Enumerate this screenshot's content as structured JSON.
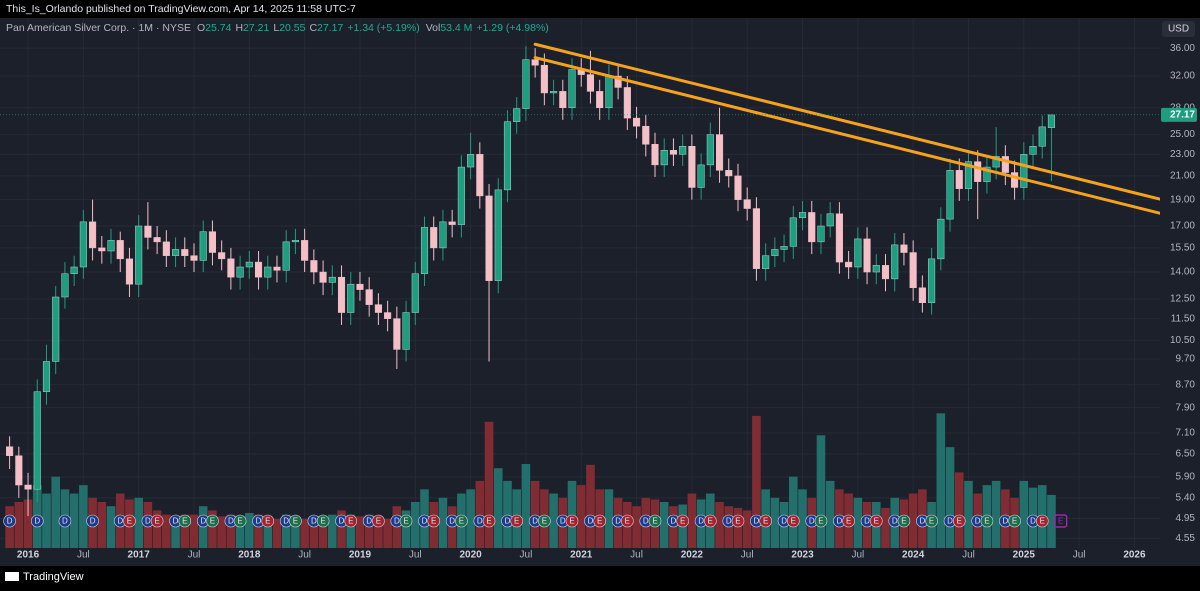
{
  "page": {
    "published": "This_Is_Orlando published on TradingView.com, Apr 14, 2025 11:58 UTC-7",
    "footer": "TradingView",
    "currency": "USD"
  },
  "chart_data": {
    "type": "candlestick",
    "title": "Pan American Silver Corp. · 1M · NYSE",
    "ohlc_letters": [
      "O",
      "H",
      "L",
      "C"
    ],
    "change_text": "+1.34 (+5.19%)",
    "volume_title": "Vol",
    "volume_text": "53.4 M",
    "volume_change_text": "+1.29 (+4.98%)",
    "log_scale": true,
    "grid": true,
    "up_color": "#1f9d80",
    "down_color": "#f4bfc6",
    "volume_up_color": "#236f6b",
    "volume_down_color": "#812c33",
    "x": [
      "2015-11",
      "2015-12",
      "2016-01",
      "2016-02",
      "2016-03",
      "2016-04",
      "2016-05",
      "2016-06",
      "2016-07",
      "2016-08",
      "2016-09",
      "2016-10",
      "2016-11",
      "2016-12",
      "2017-01",
      "2017-02",
      "2017-03",
      "2017-04",
      "2017-05",
      "2017-06",
      "2017-07",
      "2017-08",
      "2017-09",
      "2017-10",
      "2017-11",
      "2017-12",
      "2018-01",
      "2018-02",
      "2018-03",
      "2018-04",
      "2018-05",
      "2018-06",
      "2018-07",
      "2018-08",
      "2018-09",
      "2018-10",
      "2018-11",
      "2018-12",
      "2019-01",
      "2019-02",
      "2019-03",
      "2019-04",
      "2019-05",
      "2019-06",
      "2019-07",
      "2019-08",
      "2019-09",
      "2019-10",
      "2019-11",
      "2019-12",
      "2020-01",
      "2020-02",
      "2020-03",
      "2020-04",
      "2020-05",
      "2020-06",
      "2020-07",
      "2020-08",
      "2020-09",
      "2020-10",
      "2020-11",
      "2020-12",
      "2021-01",
      "2021-02",
      "2021-03",
      "2021-04",
      "2021-05",
      "2021-06",
      "2021-07",
      "2021-08",
      "2021-09",
      "2021-10",
      "2021-11",
      "2021-12",
      "2022-01",
      "2022-02",
      "2022-03",
      "2022-04",
      "2022-05",
      "2022-06",
      "2022-07",
      "2022-08",
      "2022-09",
      "2022-10",
      "2022-11",
      "2022-12",
      "2023-01",
      "2023-02",
      "2023-03",
      "2023-04",
      "2023-05",
      "2023-06",
      "2023-07",
      "2023-08",
      "2023-09",
      "2023-10",
      "2023-11",
      "2023-12",
      "2024-01",
      "2024-02",
      "2024-03",
      "2024-04",
      "2024-05",
      "2024-06",
      "2024-07",
      "2024-08",
      "2024-09",
      "2024-10",
      "2024-11",
      "2024-12",
      "2025-01",
      "2025-02",
      "2025-03",
      "2025-04"
    ],
    "open": [
      6.7,
      6.45,
      5.7,
      5.6,
      8.45,
      9.6,
      12.6,
      13.9,
      14.3,
      17.3,
      15.5,
      15.3,
      16,
      14.8,
      13.3,
      17,
      16.2,
      15.9,
      15,
      15.4,
      15,
      14.7,
      16.6,
      15.2,
      14.8,
      13.7,
      14.3,
      14.6,
      13.7,
      14.3,
      14.1,
      15.9,
      16,
      14.7,
      14,
      13.4,
      13.7,
      11.8,
      13.3,
      13,
      12.2,
      11.8,
      11.5,
      10.1,
      11.8,
      13.9,
      16.9,
      15.5,
      17.3,
      17.1,
      21.8,
      23,
      19.3,
      13.5,
      19.8,
      26.4,
      27.9,
      34.3,
      33.5,
      29.8,
      30,
      28,
      32.9,
      32.2,
      30,
      28,
      32,
      30.5,
      26.8,
      25.9,
      24,
      22,
      23.4,
      23,
      23.8,
      20,
      22,
      25,
      21.5,
      21,
      19,
      18.3,
      14.2,
      15,
      15.4,
      15.6,
      17.6,
      18,
      15.9,
      17,
      17.9,
      14.6,
      14.3,
      16.1,
      14,
      14.4,
      13.6,
      15.7,
      15.2,
      13.1,
      12.3,
      14.8,
      17.5,
      21.5,
      19.9,
      22.3,
      20.5,
      21.8,
      22.8,
      21.3,
      20,
      23,
      23.8,
      25.74
    ],
    "high": [
      7,
      6.7,
      6,
      8.9,
      10.3,
      13.2,
      14.6,
      15,
      18.2,
      19,
      16.3,
      16.8,
      16.6,
      15.5,
      17.8,
      18.8,
      17,
      16.7,
      16.2,
      16.2,
      15.8,
      17.4,
      17.4,
      16,
      15.5,
      15,
      15.3,
      15.3,
      15,
      15,
      16.7,
      16.8,
      16.8,
      15.4,
      14.7,
      14.4,
      14.4,
      14,
      14,
      13.7,
      12.8,
      12.4,
      12.1,
      12.4,
      14.6,
      17.7,
      17.7,
      18.2,
      18.2,
      22.9,
      25.2,
      24.2,
      20.3,
      20.8,
      27.7,
      29.3,
      36.3,
      36,
      35.2,
      31.5,
      31.5,
      34.5,
      34.5,
      35.6,
      31.5,
      33.6,
      33.6,
      32,
      28.1,
      27.2,
      25.2,
      24.6,
      24.6,
      25,
      25,
      23.1,
      26.3,
      28,
      22.6,
      22.1,
      20,
      19.2,
      15.8,
      16.2,
      16.4,
      18.5,
      18.9,
      18.9,
      17.9,
      18.8,
      18.8,
      15.3,
      16.9,
      16.9,
      15.1,
      15.1,
      16.5,
      16.5,
      16,
      13.8,
      15.5,
      18.4,
      22.6,
      22.6,
      23.4,
      23.4,
      22.9,
      25.8,
      23.9,
      22.4,
      24.2,
      25,
      27.1,
      27.21
    ],
    "low": [
      6.1,
      5.4,
      5,
      5.3,
      8,
      9.1,
      12,
      13.2,
      13.6,
      14.7,
      14.5,
      14.5,
      14,
      12.6,
      12.6,
      15.4,
      15.1,
      14.3,
      14.3,
      14.3,
      14,
      14,
      14.4,
      14.1,
      13,
      13,
      13.6,
      13,
      13,
      13.4,
      13.4,
      15.1,
      14,
      13.3,
      12.7,
      12.7,
      11.2,
      11.2,
      12.4,
      11.6,
      11.2,
      10.9,
      9.3,
      9.6,
      11.2,
      13.2,
      14.7,
      14.7,
      16.2,
      16.2,
      20.7,
      18.3,
      9.6,
      12.8,
      18.8,
      25.1,
      26.5,
      31.8,
      28.3,
      28.3,
      26.6,
      26.6,
      30.6,
      28.5,
      26.6,
      26.6,
      29,
      25.5,
      24.6,
      22.8,
      20.9,
      20.9,
      21.9,
      21.9,
      19,
      19,
      20.9,
      20.4,
      20,
      18.1,
      17.4,
      13.5,
      13.5,
      14.3,
      14.6,
      14.8,
      16.7,
      15.1,
      15.1,
      16.2,
      13.9,
      13.6,
      13.6,
      13.3,
      13.3,
      12.9,
      12.9,
      14.4,
      12.4,
      11.8,
      11.7,
      14.1,
      16.6,
      18.9,
      18.9,
      17.5,
      19.5,
      20.7,
      20.2,
      19,
      19,
      21.9,
      22.6,
      20.55
    ],
    "close": [
      6.45,
      5.7,
      5.6,
      8.45,
      9.6,
      12.6,
      13.9,
      14.3,
      17.3,
      15.5,
      15.3,
      16,
      14.8,
      13.3,
      17,
      16.2,
      15.9,
      15,
      15.4,
      15,
      14.7,
      16.6,
      15.2,
      14.8,
      13.7,
      14.3,
      14.6,
      13.7,
      14.3,
      14.1,
      15.9,
      16,
      14.7,
      14,
      13.4,
      13.7,
      11.8,
      13.3,
      13,
      12.2,
      11.8,
      11.5,
      10.1,
      11.8,
      13.9,
      16.9,
      15.5,
      17.3,
      17.1,
      21.8,
      23,
      19.3,
      13.5,
      19.8,
      26.4,
      27.9,
      34.3,
      33.5,
      29.8,
      30,
      28,
      32.9,
      32.2,
      30,
      28,
      32,
      30.5,
      26.8,
      25.9,
      24,
      22,
      23.4,
      23,
      23.8,
      20,
      22,
      25,
      21.5,
      21,
      19,
      18.3,
      14.2,
      15,
      15.4,
      15.6,
      17.6,
      18,
      15.9,
      17,
      17.9,
      14.6,
      14.3,
      16.1,
      14,
      14.4,
      13.6,
      15.7,
      15.2,
      13.1,
      12.3,
      14.8,
      17.5,
      21.5,
      19.9,
      22.3,
      20.5,
      21.8,
      22.8,
      21.3,
      20,
      23,
      23.8,
      25.83,
      27.17
    ],
    "volume": [
      40,
      45,
      48,
      65,
      55,
      75,
      60,
      55,
      65,
      50,
      45,
      40,
      55,
      48,
      50,
      45,
      35,
      30,
      28,
      30,
      30,
      40,
      35,
      28,
      30,
      28,
      32,
      30,
      28,
      25,
      30,
      28,
      25,
      28,
      25,
      30,
      35,
      30,
      28,
      30,
      25,
      25,
      40,
      35,
      45,
      60,
      45,
      50,
      40,
      55,
      60,
      70,
      140,
      85,
      70,
      60,
      90,
      70,
      60,
      55,
      50,
      70,
      65,
      89,
      60,
      60,
      50,
      45,
      40,
      50,
      48,
      45,
      40,
      42,
      55,
      48,
      55,
      45,
      40,
      38,
      35,
      147,
      60,
      50,
      45,
      75,
      60,
      50,
      124,
      70,
      60,
      55,
      50,
      45,
      45,
      38,
      50,
      48,
      55,
      60,
      45,
      150,
      110,
      80,
      70,
      55,
      65,
      70,
      60,
      50,
      70,
      62,
      65,
      53.4
    ],
    "ylim": [
      4.37,
      40.2
    ],
    "yticks": [
      {
        "value": 36,
        "label": "36.00"
      },
      {
        "value": 32,
        "label": "32.00"
      },
      {
        "value": 28,
        "label": "28.00"
      },
      {
        "value": 25,
        "label": "25.00"
      },
      {
        "value": 23,
        "label": "23.00"
      },
      {
        "value": 21,
        "label": "21.00"
      },
      {
        "value": 19,
        "label": "19.00"
      },
      {
        "value": 17,
        "label": "17.00"
      },
      {
        "value": 15.5,
        "label": "15.50"
      },
      {
        "value": 14,
        "label": "14.00"
      },
      {
        "value": 12.5,
        "label": "12.50"
      },
      {
        "value": 11.5,
        "label": "11.50"
      },
      {
        "value": 10.5,
        "label": "10.50"
      },
      {
        "value": 9.7,
        "label": "9.70"
      },
      {
        "value": 8.7,
        "label": "8.70"
      },
      {
        "value": 7.9,
        "label": "7.90"
      },
      {
        "value": 7.1,
        "label": "7.10"
      },
      {
        "value": 6.5,
        "label": "6.50"
      },
      {
        "value": 5.9,
        "label": "5.90"
      },
      {
        "value": 5.4,
        "label": "5.40"
      },
      {
        "value": 4.95,
        "label": "4.95"
      },
      {
        "value": 4.55,
        "label": "4.55"
      }
    ],
    "vlim": [
      0,
      180
    ],
    "xticks": [
      {
        "value": "2016-01",
        "label": "2016"
      },
      {
        "value": "2016-07",
        "label": "Jul"
      },
      {
        "value": "2017-01",
        "label": "2017"
      },
      {
        "value": "2017-07",
        "label": "Jul"
      },
      {
        "value": "2018-01",
        "label": "2018"
      },
      {
        "value": "2018-07",
        "label": "Jul"
      },
      {
        "value": "2019-01",
        "label": "2019"
      },
      {
        "value": "2019-07",
        "label": "Jul"
      },
      {
        "value": "2020-01",
        "label": "2020"
      },
      {
        "value": "2020-07",
        "label": "Jul"
      },
      {
        "value": "2021-01",
        "label": "2021"
      },
      {
        "value": "2021-07",
        "label": "Jul"
      },
      {
        "value": "2022-01",
        "label": "2022"
      },
      {
        "value": "2022-07",
        "label": "Jul"
      },
      {
        "value": "2023-01",
        "label": "2023"
      },
      {
        "value": "2023-07",
        "label": "Jul"
      },
      {
        "value": "2024-01",
        "label": "2024"
      },
      {
        "value": "2024-07",
        "label": "Jul"
      },
      {
        "value": "2025-01",
        "label": "2025"
      },
      {
        "value": "2025-07",
        "label": "Jul"
      },
      {
        "value": "2026-01",
        "label": "2026"
      }
    ],
    "dividends": {
      "label": "D",
      "color": "#1c3a8c",
      "x": [
        "2015-11",
        "2016-02",
        "2016-05",
        "2016-08",
        "2016-11",
        "2017-02",
        "2017-05",
        "2017-08",
        "2017-11",
        "2018-02",
        "2018-05",
        "2018-08",
        "2018-11",
        "2019-02",
        "2019-05",
        "2019-08",
        "2019-11",
        "2020-02",
        "2020-05",
        "2020-08",
        "2020-11",
        "2021-02",
        "2021-05",
        "2021-08",
        "2021-11",
        "2022-02",
        "2022-05",
        "2022-08",
        "2022-11",
        "2023-02",
        "2023-05",
        "2023-08",
        "2023-11",
        "2024-02",
        "2024-05",
        "2024-08",
        "2024-11",
        "2025-02"
      ]
    },
    "earnings": {
      "label": "E",
      "x": [
        "2016-12",
        "2017-03",
        "2017-06",
        "2017-09",
        "2017-12",
        "2018-03",
        "2018-06",
        "2018-09",
        "2018-12",
        "2019-03",
        "2019-06",
        "2019-09",
        "2019-12",
        "2020-03",
        "2020-06",
        "2020-09",
        "2020-12",
        "2021-03",
        "2021-06",
        "2021-09",
        "2021-12",
        "2022-03",
        "2022-06",
        "2022-09",
        "2022-12",
        "2023-03",
        "2023-06",
        "2023-09",
        "2023-12",
        "2024-03",
        "2024-06",
        "2024-09",
        "2024-12",
        "2025-03"
      ],
      "colors": [
        "#a3222d",
        "#a3222d",
        "#1b6e4a",
        "#1b6e4a",
        "#1b6e4a",
        "#a3222d",
        "#1b6e4a",
        "#1b6e4a",
        "#a3222d",
        "#a3222d",
        "#1b6e4a",
        "#a3222d",
        "#1b6e4a",
        "#a3222d",
        "#a3222d",
        "#1b6e4a",
        "#a3222d",
        "#a3222d",
        "#a3222d",
        "#1b6e4a",
        "#a3222d",
        "#a3222d",
        "#a3222d",
        "#a3222d",
        "#a3222d",
        "#1b6e4a",
        "#a3222d",
        "#a3222d",
        "#1b6e4a",
        "#1b6e4a",
        "#a3222d",
        "#1b6e4a",
        "#1b6e4a",
        "#a3222d"
      ]
    },
    "upcoming_earnings": {
      "label": "E",
      "x": "2025-05",
      "color": "#9c27b0"
    },
    "trendlines": [
      {
        "color": "#f7a21b",
        "x": [
          "2020-08",
          "2026-04"
        ],
        "y": [
          36.6,
          19.0
        ]
      },
      {
        "color": "#f7a21b",
        "x": [
          "2020-08",
          "2026-04"
        ],
        "y": [
          34.6,
          17.9
        ]
      }
    ]
  }
}
